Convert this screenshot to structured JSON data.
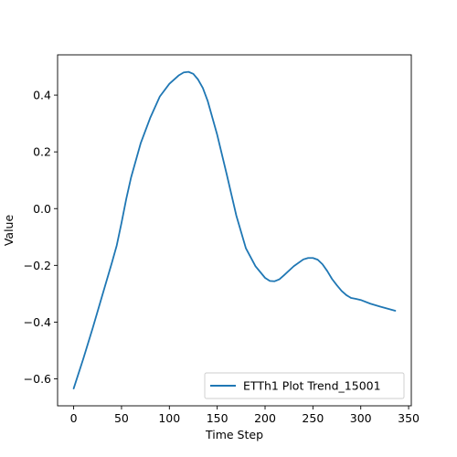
{
  "chart_data": {
    "type": "line",
    "title": "",
    "xlabel": "Time Step",
    "ylabel": "Value",
    "xlim": [
      -16.8,
      352.8
    ],
    "ylim": [
      -0.695,
      0.542
    ],
    "xticks": [
      0,
      50,
      100,
      150,
      200,
      250,
      300,
      350
    ],
    "yticks": [
      -0.6,
      -0.4,
      -0.2,
      0.0,
      0.2,
      0.4
    ],
    "xtick_labels": [
      "0",
      "50",
      "100",
      "150",
      "200",
      "250",
      "300",
      "350"
    ],
    "ytick_labels": [
      "−0.6",
      "−0.4",
      "−0.2",
      "0.0",
      "0.2",
      "0.4"
    ],
    "grid": false,
    "legend_position": "lower-right",
    "series": [
      {
        "name": "ETTh1 Plot Trend_15001",
        "color": "#1f77b4",
        "x": [
          0,
          10,
          20,
          30,
          40,
          45,
          50,
          55,
          60,
          70,
          80,
          90,
          100,
          110,
          115,
          120,
          125,
          130,
          135,
          140,
          150,
          160,
          170,
          180,
          190,
          200,
          205,
          210,
          215,
          220,
          230,
          240,
          245,
          250,
          255,
          260,
          265,
          270,
          275,
          280,
          285,
          290,
          295,
          300,
          310,
          320,
          336
        ],
        "y": [
          -0.634,
          -0.53,
          -0.42,
          -0.305,
          -0.19,
          -0.13,
          -0.05,
          0.035,
          0.11,
          0.23,
          0.32,
          0.395,
          0.44,
          0.47,
          0.48,
          0.482,
          0.475,
          0.455,
          0.425,
          0.38,
          0.26,
          0.12,
          -0.025,
          -0.14,
          -0.203,
          -0.244,
          -0.255,
          -0.256,
          -0.249,
          -0.234,
          -0.203,
          -0.179,
          -0.174,
          -0.174,
          -0.18,
          -0.196,
          -0.22,
          -0.248,
          -0.27,
          -0.29,
          -0.305,
          -0.315,
          -0.318,
          -0.322,
          -0.335,
          -0.345,
          -0.36
        ]
      }
    ]
  }
}
